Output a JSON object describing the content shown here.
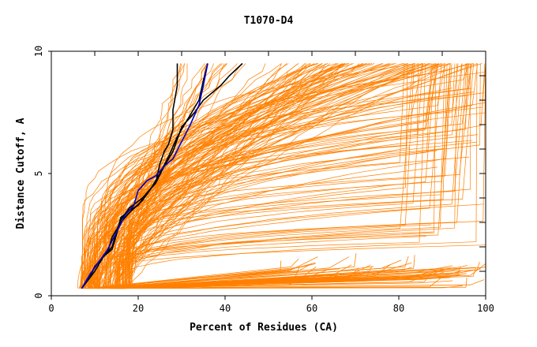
{
  "chart_data": {
    "type": "line",
    "title": "T1070-D4",
    "xlabel": "Percent of Residues (CA)",
    "ylabel": "Distance Cutoff, A",
    "xlim": [
      0,
      100
    ],
    "ylim": [
      0,
      10
    ],
    "x_ticks": [
      0,
      20,
      40,
      60,
      80,
      100
    ],
    "y_ticks": [
      0,
      5,
      10
    ],
    "grid": false,
    "colors": {
      "background": "#ffffff",
      "axis": "#000000",
      "models": "#ff8000",
      "highlight_black": "#000000",
      "highlight_blue": "#0000cc"
    },
    "series": [
      {
        "color": "#000000",
        "points": [
          [
            7,
            0.3
          ],
          [
            9,
            0.8
          ],
          [
            10,
            1.2
          ],
          [
            12,
            1.6
          ],
          [
            14,
            1.9
          ],
          [
            15,
            2.5
          ],
          [
            16,
            3.2
          ],
          [
            18,
            3.5
          ],
          [
            20,
            3.7
          ],
          [
            22,
            4.2
          ],
          [
            24,
            4.6
          ],
          [
            25,
            5.4
          ],
          [
            26,
            5.9
          ],
          [
            27,
            6.2
          ],
          [
            28,
            6.8
          ],
          [
            28,
            7.6
          ],
          [
            29,
            8.6
          ],
          [
            29,
            9.5
          ]
        ]
      },
      {
        "color": "#000000",
        "points": [
          [
            7,
            0.3
          ],
          [
            9,
            0.9
          ],
          [
            11,
            1.4
          ],
          [
            13,
            1.8
          ],
          [
            14,
            2.4
          ],
          [
            16,
            3.0
          ],
          [
            18,
            3.4
          ],
          [
            21,
            3.9
          ],
          [
            23,
            4.4
          ],
          [
            25,
            5.0
          ],
          [
            27,
            5.7
          ],
          [
            29,
            6.5
          ],
          [
            32,
            7.4
          ],
          [
            34,
            8.0
          ],
          [
            35,
            8.8
          ],
          [
            36,
            9.5
          ]
        ]
      },
      {
        "color": "#000000",
        "points": [
          [
            7,
            0.3
          ],
          [
            10,
            1.0
          ],
          [
            12,
            1.6
          ],
          [
            14,
            2.0
          ],
          [
            15,
            2.6
          ],
          [
            16,
            3.1
          ],
          [
            18,
            3.6
          ],
          [
            21,
            4.0
          ],
          [
            24,
            4.6
          ],
          [
            26,
            5.3
          ],
          [
            28,
            5.9
          ],
          [
            30,
            6.9
          ],
          [
            33,
            7.5
          ],
          [
            35,
            8.0
          ],
          [
            39,
            8.6
          ],
          [
            41,
            9.0
          ],
          [
            44,
            9.5
          ]
        ]
      },
      {
        "color": "#0000cc",
        "points": [
          [
            7,
            0.3
          ],
          [
            9,
            0.9
          ],
          [
            11,
            1.4
          ],
          [
            13,
            1.9
          ],
          [
            15,
            2.6
          ],
          [
            17,
            3.3
          ],
          [
            19,
            3.7
          ],
          [
            20,
            4.3
          ],
          [
            22,
            4.7
          ],
          [
            24,
            4.9
          ],
          [
            26,
            5.3
          ],
          [
            28,
            5.6
          ],
          [
            30,
            6.3
          ],
          [
            32,
            7.0
          ],
          [
            34,
            7.8
          ],
          [
            35,
            8.6
          ],
          [
            36,
            9.5
          ]
        ]
      }
    ]
  }
}
